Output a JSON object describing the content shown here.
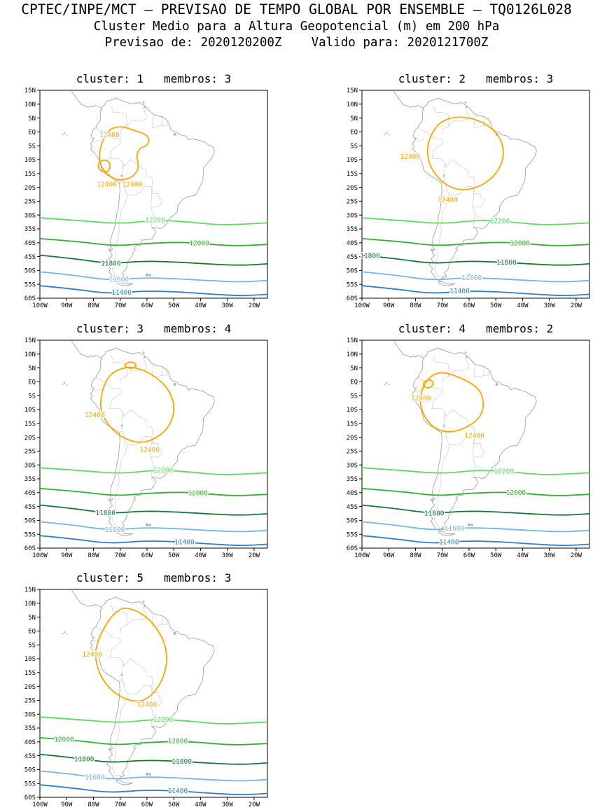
{
  "header": {
    "line1": "CPTEC/INPE/MCT — PREVISAO DE TEMPO GLOBAL POR ENSEMBLE — TQ0126L028",
    "line2": "Cluster Medio para a Altura Geopotencial (m) em 200 hPa",
    "line3": "Previsao de: 2020120200Z    Valido para: 2020121700Z"
  },
  "chart_data": {
    "type": "contour-map",
    "variable": "Altura Geopotencial (m) em 200 hPa",
    "forecast_from": "2020120200Z",
    "valid_for": "2020121700Z",
    "lon_range": [
      -100,
      -15
    ],
    "lat_range": [
      -60,
      15
    ],
    "lat_tick_labels": [
      "15N",
      "10N",
      "5N",
      "EQ",
      "5S",
      "10S",
      "15S",
      "20S",
      "25S",
      "30S",
      "35S",
      "40S",
      "45S",
      "50S",
      "55S",
      "60S"
    ],
    "lon_tick_labels": [
      "100W",
      "90W",
      "80W",
      "70W",
      "60W",
      "50W",
      "40W",
      "30W",
      "20W"
    ],
    "contour_levels": [
      {
        "value": 11400,
        "color": "#2e7fd1"
      },
      {
        "value": 11600,
        "color": "#74b6e8"
      },
      {
        "value": 11800,
        "color": "#0f7a2e"
      },
      {
        "value": 12000,
        "color": "#2eb02e"
      },
      {
        "value": 12200,
        "color": "#5fd95f"
      },
      {
        "value": 12400,
        "color": "#ffa500"
      }
    ],
    "zonal_contours": [
      {
        "level": 12200,
        "points": [
          [
            -100,
            -31
          ],
          [
            -85,
            -32
          ],
          [
            -70,
            -33.2
          ],
          [
            -57,
            -31.8
          ],
          [
            -45,
            -32.4
          ],
          [
            -33,
            -33.6
          ],
          [
            -22,
            -33.2
          ],
          [
            -15,
            -32.8
          ]
        ]
      },
      {
        "level": 12000,
        "points": [
          [
            -100,
            -38.5
          ],
          [
            -85,
            -39.6
          ],
          [
            -72,
            -41.2
          ],
          [
            -60,
            -40.2
          ],
          [
            -48,
            -39.8
          ],
          [
            -40,
            -40.2
          ],
          [
            -28,
            -41.2
          ],
          [
            -15,
            -40.6
          ]
        ]
      },
      {
        "level": 11800,
        "points": [
          [
            -100,
            -44.5
          ],
          [
            -88,
            -45.6
          ],
          [
            -74,
            -47.6
          ],
          [
            -62,
            -46.6
          ],
          [
            -50,
            -46.9
          ],
          [
            -38,
            -47.6
          ],
          [
            -25,
            -48.2
          ],
          [
            -15,
            -47.6
          ]
        ]
      },
      {
        "level": 11600,
        "points": [
          [
            -100,
            -50.5
          ],
          [
            -88,
            -51.6
          ],
          [
            -74,
            -53.6
          ],
          [
            -62,
            -52.6
          ],
          [
            -50,
            -52.9
          ],
          [
            -38,
            -53.6
          ],
          [
            -25,
            -54.2
          ],
          [
            -15,
            -53.6
          ]
        ]
      },
      {
        "level": 11400,
        "points": [
          [
            -100,
            -55.5
          ],
          [
            -88,
            -56.6
          ],
          [
            -74,
            -58.4
          ],
          [
            -62,
            -57.4
          ],
          [
            -50,
            -57.6
          ],
          [
            -38,
            -58.4
          ],
          [
            -25,
            -59.2
          ],
          [
            -15,
            -58.6
          ]
        ]
      }
    ],
    "panels": [
      {
        "cluster": 1,
        "membros": 3,
        "title": "cluster: 1   membros: 3",
        "contours_12400": [
          {
            "points": [
              [
                -73,
                1.5
              ],
              [
                -69,
                2
              ],
              [
                -65,
                0.5
              ],
              [
                -61,
                -0.5
              ],
              [
                -59,
                -2.5
              ],
              [
                -60,
                -5
              ],
              [
                -63,
                -6
              ],
              [
                -64,
                -9
              ],
              [
                -63,
                -12
              ],
              [
                -64,
                -15
              ],
              [
                -67,
                -17
              ],
              [
                -71,
                -17.5
              ],
              [
                -74,
                -16
              ],
              [
                -77,
                -13
              ],
              [
                -78,
                -9
              ],
              [
                -77,
                -4
              ],
              [
                -75,
                -0.5
              ]
            ]
          },
          {
            "points": [
              [
                -77.5,
                -10.5
              ],
              [
                -75,
                -10
              ],
              [
                -73.5,
                -12
              ],
              [
                -74.5,
                -14.5
              ],
              [
                -77,
                -14.5
              ],
              [
                -78.5,
                -12.5
              ]
            ]
          }
        ],
        "labels_12400": [
          {
            "lon": -74,
            "lat": -1.2
          },
          {
            "lon": -75,
            "lat": -19
          },
          {
            "lon": -65.5,
            "lat": -19
          }
        ],
        "zonal_labels": [
          {
            "level": 12200,
            "lons": [
              -57
            ]
          },
          {
            "level": 12000,
            "lons": [
              -40.5
            ]
          },
          {
            "level": 11800,
            "lons": [
              -73.5
            ]
          },
          {
            "level": 11600,
            "lons": [
              -70.5
            ]
          },
          {
            "level": 11400,
            "lons": [
              -69.5
            ]
          }
        ]
      },
      {
        "cluster": 2,
        "membros": 3,
        "title": "cluster: 2   membros: 3",
        "contours_12400": [
          {
            "points": [
              [
                -70,
                4
              ],
              [
                -65,
                5.5
              ],
              [
                -59,
                5
              ],
              [
                -54,
                3
              ],
              [
                -50,
                0
              ],
              [
                -47.5,
                -4
              ],
              [
                -47,
                -9
              ],
              [
                -49,
                -14
              ],
              [
                -53,
                -18
              ],
              [
                -58,
                -20.5
              ],
              [
                -64,
                -21
              ],
              [
                -69,
                -19
              ],
              [
                -73,
                -15
              ],
              [
                -75.5,
                -10
              ],
              [
                -75.5,
                -4
              ],
              [
                -73,
                1
              ]
            ]
          }
        ],
        "labels_12400": [
          {
            "lon": -82,
            "lat": -9
          },
          {
            "lon": -68,
            "lat": -24.5
          }
        ],
        "zonal_labels": [
          {
            "level": 12200,
            "lons": [
              -48.5
            ]
          },
          {
            "level": 12000,
            "lons": [
              -41
            ]
          },
          {
            "level": 11800,
            "lons": [
              -97,
              -46
            ]
          },
          {
            "level": 11600,
            "lons": [
              -59
            ]
          },
          {
            "level": 11400,
            "lons": [
              -63.5
            ]
          }
        ]
      },
      {
        "cluster": 3,
        "membros": 4,
        "title": "cluster: 3   membros: 4",
        "contours_12400": [
          {
            "points": [
              [
                -72,
                4
              ],
              [
                -67,
                5.5
              ],
              [
                -62,
                4.5
              ],
              [
                -57,
                2
              ],
              [
                -52.5,
                -2
              ],
              [
                -50,
                -7
              ],
              [
                -50,
                -12
              ],
              [
                -52,
                -16.5
              ],
              [
                -56,
                -20
              ],
              [
                -61,
                -22
              ],
              [
                -66,
                -21.5
              ],
              [
                -71,
                -19
              ],
              [
                -75,
                -15
              ],
              [
                -77.5,
                -10
              ],
              [
                -77,
                -4
              ],
              [
                -75,
                1
              ]
            ]
          },
          {
            "points": [
              [
                -69,
                6
              ],
              [
                -66,
                7.5
              ],
              [
                -63.5,
                6
              ],
              [
                -66,
                4.5
              ]
            ]
          }
        ],
        "labels_12400": [
          {
            "lon": -79.5,
            "lat": -12
          },
          {
            "lon": -59,
            "lat": -24.5
          }
        ],
        "zonal_labels": [
          {
            "level": 12200,
            "lons": [
              -54
            ]
          },
          {
            "level": 12000,
            "lons": [
              -41
            ]
          },
          {
            "level": 11800,
            "lons": [
              -75.5
            ]
          },
          {
            "level": 11600,
            "lons": [
              -72
            ]
          },
          {
            "level": 11400,
            "lons": [
              -46
            ]
          }
        ]
      },
      {
        "cluster": 4,
        "membros": 2,
        "title": "cluster: 4   membros: 2",
        "contours_12400": [
          {
            "points": [
              [
                -74,
                2.5
              ],
              [
                -70,
                3.5
              ],
              [
                -66,
                2.5
              ],
              [
                -61,
                0.5
              ],
              [
                -57,
                -2
              ],
              [
                -55,
                -5
              ],
              [
                -54.5,
                -9
              ],
              [
                -56,
                -13
              ],
              [
                -60,
                -16
              ],
              [
                -65,
                -18
              ],
              [
                -70,
                -18
              ],
              [
                -74,
                -16
              ],
              [
                -77,
                -12
              ],
              [
                -78.5,
                -7.5
              ],
              [
                -77.5,
                -2
              ]
            ]
          },
          {
            "points": [
              [
                -77,
                0
              ],
              [
                -74.5,
                1
              ],
              [
                -73,
                -0.8
              ],
              [
                -75,
                -2.5
              ],
              [
                -77.2,
                -1.5
              ]
            ]
          }
        ],
        "labels_12400": [
          {
            "lon": -78,
            "lat": -6
          },
          {
            "lon": -58,
            "lat": -19.5
          }
        ],
        "zonal_labels": [
          {
            "level": 12200,
            "lons": [
              -47
            ]
          },
          {
            "level": 12000,
            "lons": [
              -42.5
            ]
          },
          {
            "level": 11800,
            "lons": [
              -73
            ]
          },
          {
            "level": 11600,
            "lons": [
              -65.5
            ]
          },
          {
            "level": 11400,
            "lons": [
              -67.5
            ]
          }
        ]
      },
      {
        "cluster": 5,
        "membros": 3,
        "title": "cluster: 5   membros: 3",
        "contours_12400": [
          {
            "points": [
              [
                -69,
                8.5
              ],
              [
                -64,
                7.5
              ],
              [
                -59.5,
                4.5
              ],
              [
                -56,
                0.5
              ],
              [
                -53.5,
                -4
              ],
              [
                -52.5,
                -9
              ],
              [
                -53,
                -14
              ],
              [
                -55,
                -19
              ],
              [
                -58,
                -23
              ],
              [
                -62,
                -25.5
              ],
              [
                -67,
                -25
              ],
              [
                -72,
                -22.5
              ],
              [
                -76,
                -18.5
              ],
              [
                -78.5,
                -13.5
              ],
              [
                -79.5,
                -8
              ],
              [
                -78,
                -2.5
              ],
              [
                -75,
                3
              ],
              [
                -72,
                6.5
              ]
            ]
          }
        ],
        "labels_12400": [
          {
            "lon": -80.5,
            "lat": -8.5
          },
          {
            "lon": -60,
            "lat": -26.5
          }
        ],
        "zonal_labels": [
          {
            "level": 12200,
            "lons": [
              -54
            ]
          },
          {
            "level": 12000,
            "lons": [
              -91,
              -48.5
            ]
          },
          {
            "level": 11800,
            "lons": [
              -83.5,
              -47
            ]
          },
          {
            "level": 11600,
            "lons": [
              -79.5
            ]
          },
          {
            "level": 11400,
            "lons": [
              -48.5
            ]
          }
        ]
      }
    ]
  }
}
